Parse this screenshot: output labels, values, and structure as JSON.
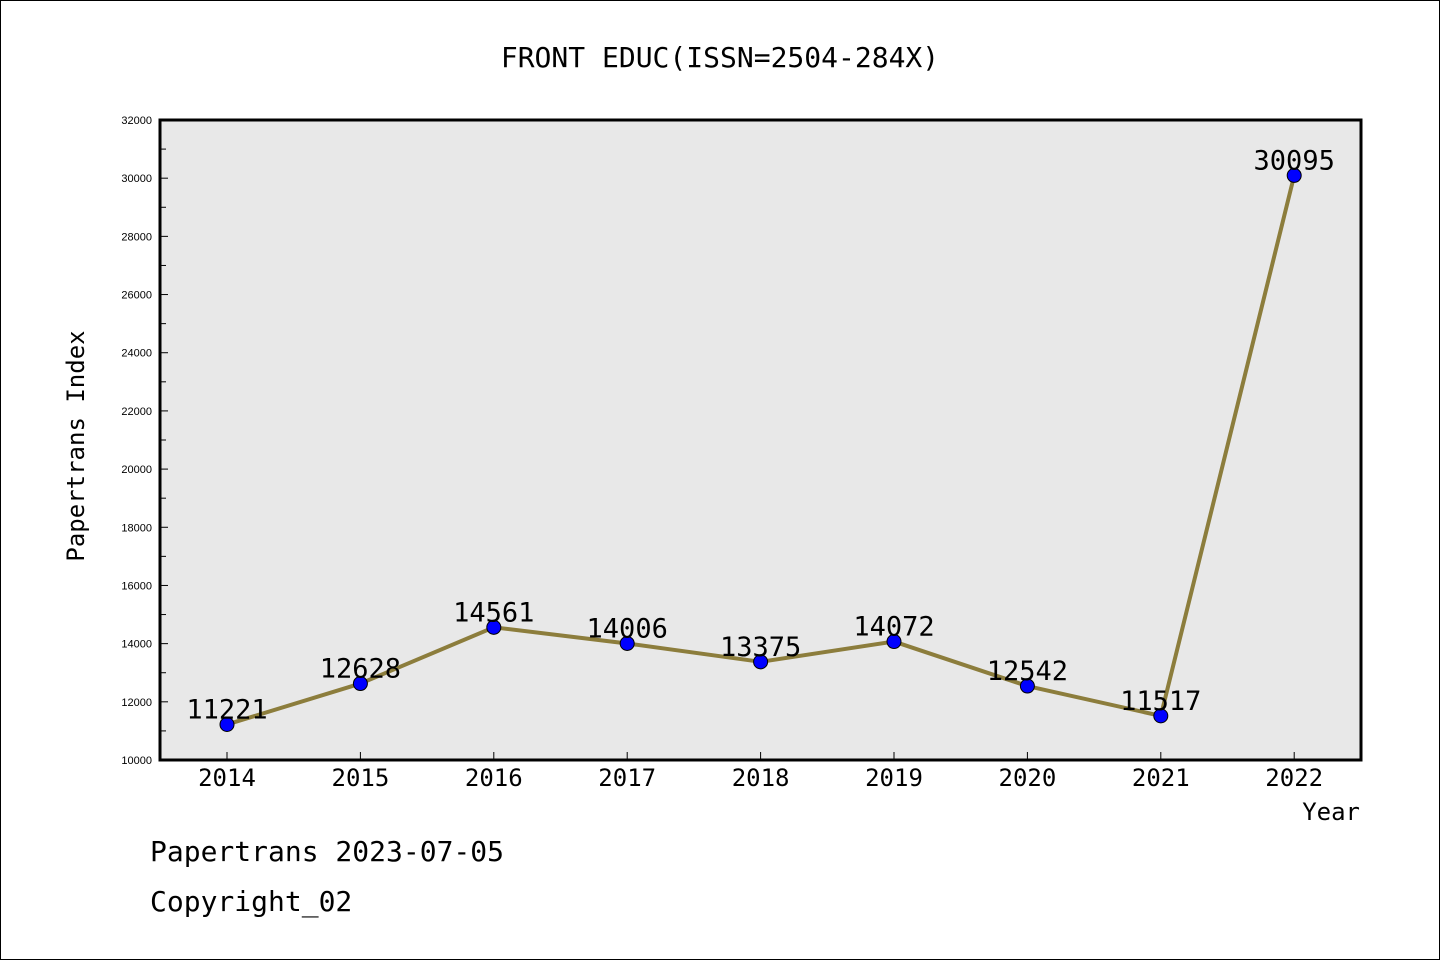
{
  "chart_data": {
    "type": "line",
    "title": "FRONT EDUC(ISSN=2504-284X)",
    "xlabel": "Year",
    "ylabel": "Papertrans Index",
    "categories": [
      "2014",
      "2015",
      "2016",
      "2017",
      "2018",
      "2019",
      "2020",
      "2021",
      "2022"
    ],
    "series": [
      {
        "values": [
          11221,
          12628,
          14561,
          14006,
          13375,
          14072,
          12542,
          11517,
          30095
        ]
      }
    ],
    "ylim": [
      10000,
      32000
    ],
    "yticks": [
      10000,
      12000,
      14000,
      16000,
      18000,
      20000,
      22000,
      24000,
      26000,
      28000,
      30000,
      32000
    ],
    "grid": false,
    "legend": "none",
    "colors": {
      "line": "#8c7d3c",
      "marker": "#0000ff",
      "plot_bg": "#e8e8e8"
    }
  },
  "footer": {
    "line1": "Papertrans 2023-07-05",
    "line2": "Copyright_02"
  }
}
